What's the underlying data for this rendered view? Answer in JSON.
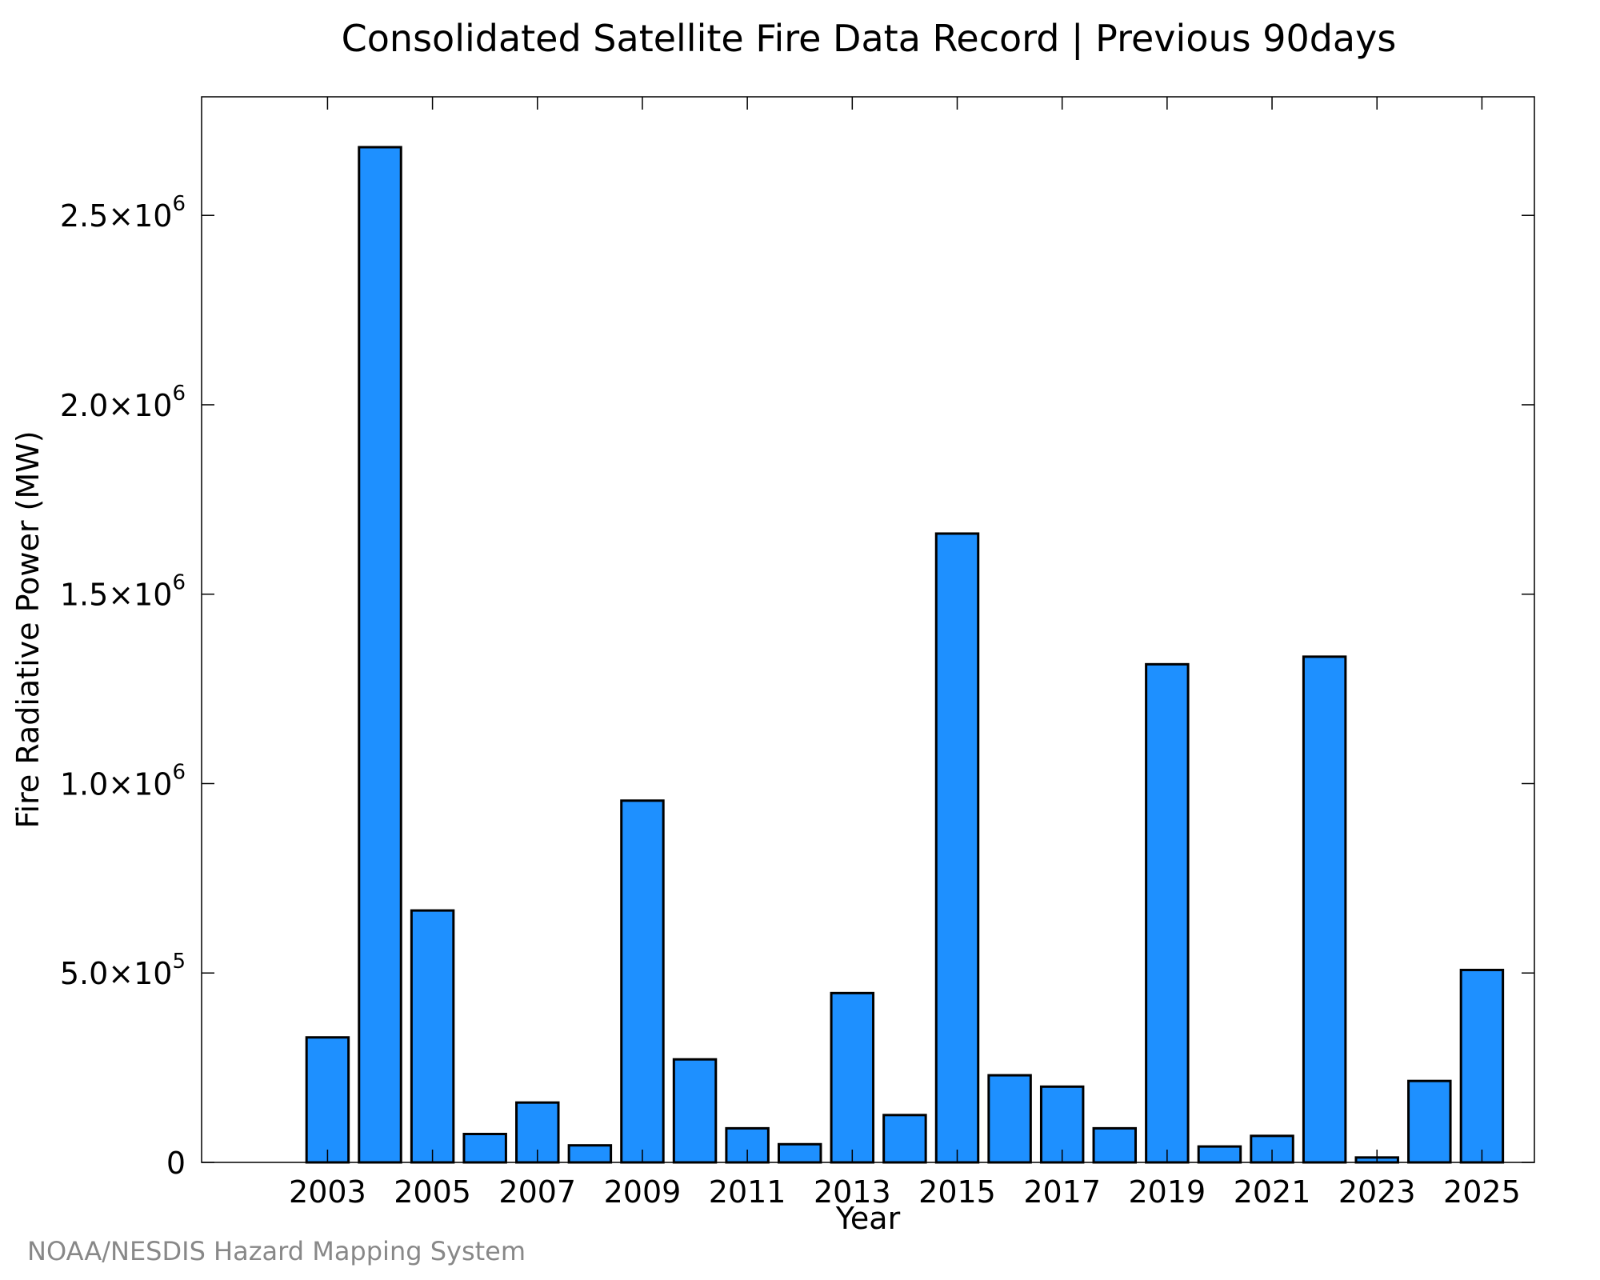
{
  "chart_data": {
    "type": "bar",
    "title": "Consolidated Satellite Fire Data Record | Previous 90days",
    "xlabel": "Year",
    "ylabel": "Fire Radiative Power (MW)",
    "credit": "NOAA/NESDIS Hazard Mapping System",
    "categories": [
      2003,
      2004,
      2005,
      2006,
      2007,
      2008,
      2009,
      2010,
      2011,
      2012,
      2013,
      2014,
      2015,
      2016,
      2017,
      2018,
      2019,
      2020,
      2021,
      2022,
      2023,
      2024,
      2025
    ],
    "values": [
      330000,
      2680000,
      665000,
      75000,
      158000,
      45000,
      955000,
      272000,
      90000,
      48000,
      447000,
      125000,
      1660000,
      230000,
      200000,
      90000,
      1315000,
      42000,
      70000,
      1335000,
      13000,
      215000,
      508000
    ],
    "xlim": [
      2000.6,
      2026.0
    ],
    "ylim": [
      0,
      2813000
    ],
    "xticks": [
      2003,
      2005,
      2007,
      2009,
      2011,
      2013,
      2015,
      2017,
      2019,
      2021,
      2023,
      2025
    ],
    "yticks": [
      {
        "value": 0,
        "mantissa": "0",
        "exponent": ""
      },
      {
        "value": 500000,
        "mantissa": "5.0×10",
        "exponent": "5"
      },
      {
        "value": 1000000,
        "mantissa": "1.0×10",
        "exponent": "6"
      },
      {
        "value": 1500000,
        "mantissa": "1.5×10",
        "exponent": "6"
      },
      {
        "value": 2000000,
        "mantissa": "2.0×10",
        "exponent": "6"
      },
      {
        "value": 2500000,
        "mantissa": "2.5×10",
        "exponent": "6"
      }
    ],
    "bar_color": "#1E90FF",
    "grid": false,
    "legend": "none"
  }
}
